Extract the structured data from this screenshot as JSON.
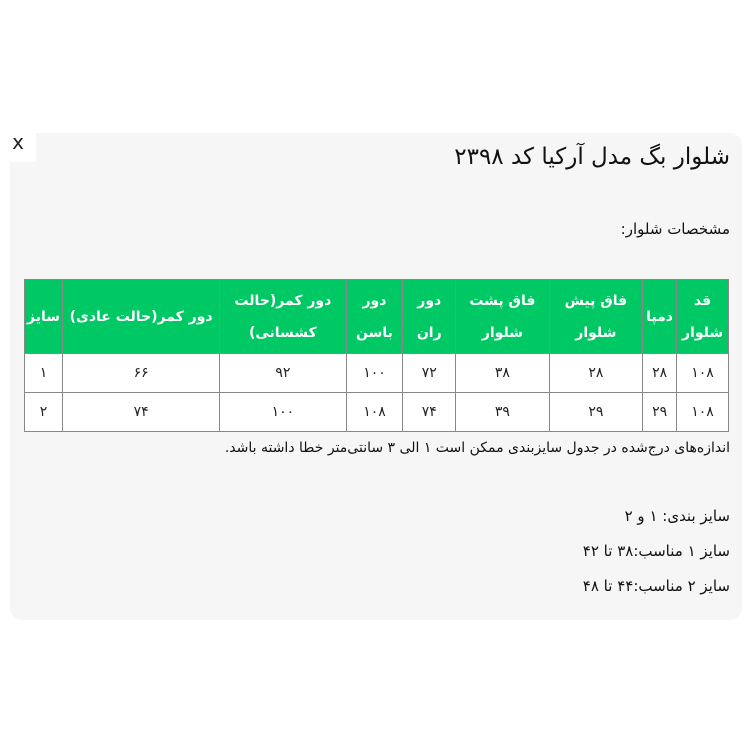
{
  "close_label": "x",
  "title": "شلوار بگ مدل آرکیا کد ۲۳۹۸",
  "subtitle": "مشخصات شلوار:",
  "table": {
    "headers": [
      "قد شلوار",
      "دمپا",
      "فاق پیش شلوار",
      "فاق پشت شلوار",
      "دور ران",
      "دور باسن",
      "دور کمر(حالت کشسانی)",
      "دور کمر(حالت عادی)",
      "سایز"
    ],
    "rows": [
      [
        "۱۰۸",
        "۲۸",
        "۲۸",
        "۳۸",
        "۷۲",
        "۱۰۰",
        "۹۲",
        "۶۶",
        "۱"
      ],
      [
        "۱۰۸",
        "۲۹",
        "۲۹",
        "۳۹",
        "۷۴",
        "۱۰۸",
        "۱۰۰",
        "۷۴",
        "۲"
      ]
    ]
  },
  "note": "اندازه‌های درج‌شده در جدول سایزبندی ممکن است ۱ الی ۳ سانتی‌متر خطا داشته باشد.",
  "lines": [
    "سایز بندی: ۱ و ۲",
    "سایز ۱ مناسب:۳۸ تا ۴۲",
    "سایز ۲ مناسب:۴۴ تا ۴۸"
  ],
  "colors": {
    "header_bg": "#00c864",
    "panel_bg": "#f6f6f6"
  }
}
